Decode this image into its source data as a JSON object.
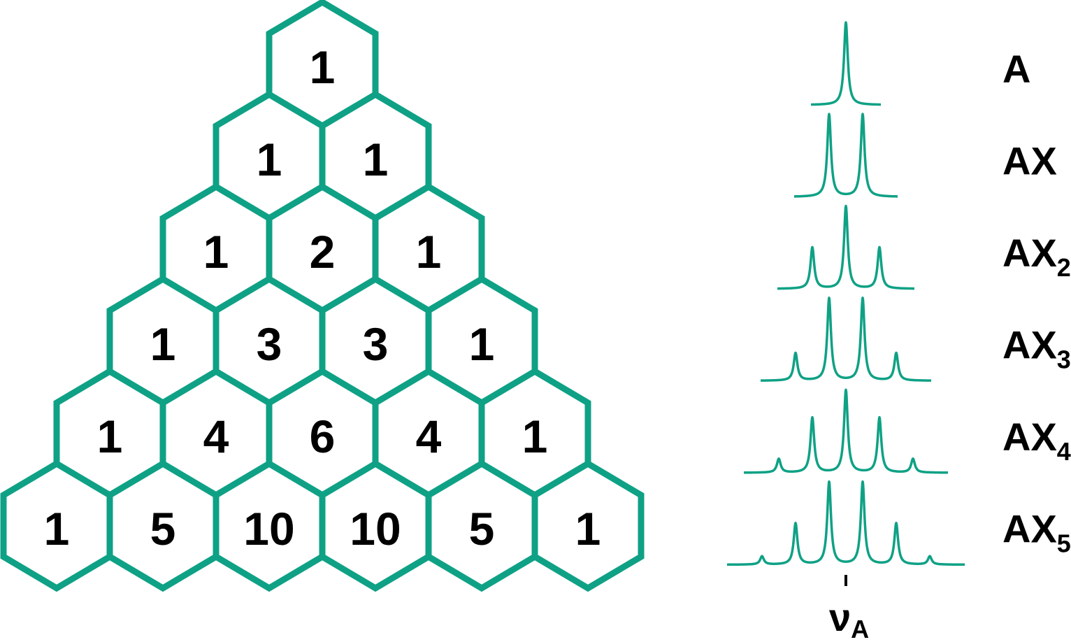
{
  "colors": {
    "accent": "#0fa185",
    "text": "#000000",
    "background": "#ffffff"
  },
  "triangle": {
    "rows": [
      [
        "1"
      ],
      [
        "1",
        "1"
      ],
      [
        "1",
        "2",
        "1"
      ],
      [
        "1",
        "3",
        "3",
        "1"
      ],
      [
        "1",
        "4",
        "6",
        "4",
        "1"
      ],
      [
        "1",
        "5",
        "10",
        "10",
        "5",
        "1"
      ]
    ]
  },
  "multiplets": [
    {
      "label": "A",
      "subscript": "",
      "n": 0
    },
    {
      "label": "AX",
      "subscript": "",
      "n": 1
    },
    {
      "label": "AX",
      "subscript": "2",
      "n": 2
    },
    {
      "label": "AX",
      "subscript": "3",
      "n": 3
    },
    {
      "label": "AX",
      "subscript": "4",
      "n": 4
    },
    {
      "label": "AX",
      "subscript": "5",
      "n": 5
    }
  ],
  "frequency_marker": {
    "symbol": "ν",
    "subscript": "A"
  }
}
